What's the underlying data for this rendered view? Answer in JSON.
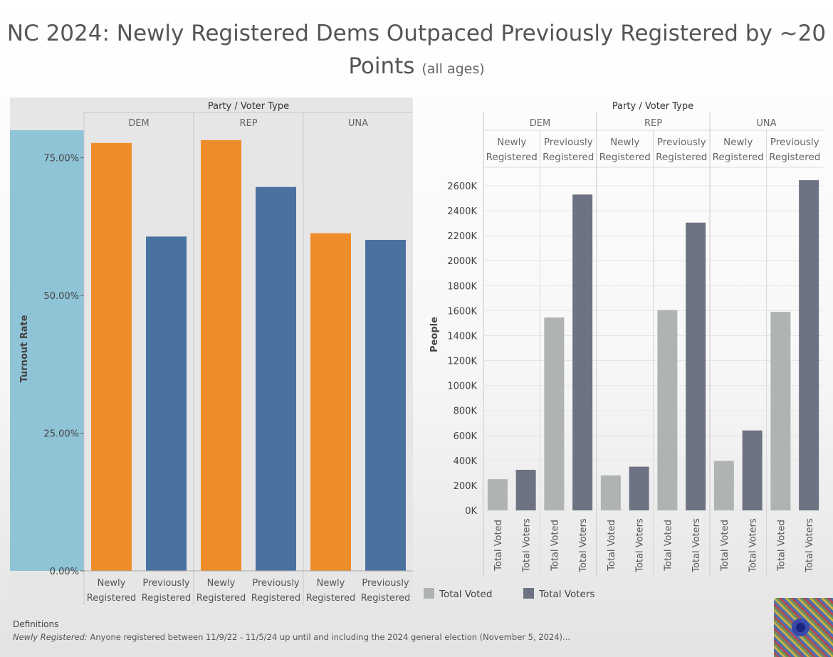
{
  "title": {
    "main_line1": "NC 2024: Newly Registered Dems Outpaced Previously Registered by ~20",
    "main_line2": "Points",
    "note": "(all ages)"
  },
  "colors": {
    "newly": "#ef8c2a",
    "previously": "#4a72a1",
    "voted": "#b0b3b4",
    "voters": "#6d7382",
    "left_bg": "#e6e6e6",
    "axis_band": "#8fc3d6"
  },
  "chart_data": [
    {
      "type": "bar",
      "header": "Party / Voter Type",
      "ylabel": "Turnout Rate",
      "ylim": [
        0,
        0.8
      ],
      "yticks": [
        "0.00%",
        "25.00%",
        "50.00%",
        "75.00%"
      ],
      "ytick_values": [
        0,
        0.25,
        0.5,
        0.75
      ],
      "groups": [
        "DEM",
        "REP",
        "UNA"
      ],
      "categories": [
        "Newly Registered",
        "Previously Registered"
      ],
      "category_lines": [
        [
          "Newly",
          "Registered"
        ],
        [
          "Previously",
          "Registered"
        ]
      ],
      "values": [
        [
          0.777,
          0.607
        ],
        [
          0.782,
          0.697
        ],
        [
          0.613,
          0.601
        ]
      ]
    },
    {
      "type": "bar",
      "header": "Party / Voter Type",
      "ylabel": "People",
      "ylim": [
        0,
        2700000
      ],
      "yticks": [
        "0K",
        "200K",
        "400K",
        "600K",
        "800K",
        "1000K",
        "1200K",
        "1400K",
        "1600K",
        "1800K",
        "2000K",
        "2200K",
        "2400K",
        "2600K"
      ],
      "ytick_values": [
        0,
        200000,
        400000,
        600000,
        800000,
        1000000,
        1200000,
        1400000,
        1600000,
        1800000,
        2000000,
        2200000,
        2400000,
        2600000
      ],
      "groups": [
        "DEM",
        "REP",
        "UNA"
      ],
      "subgroups": [
        "Newly Registered",
        "Previously Registered"
      ],
      "subgroup_lines": [
        [
          "Newly",
          "Registered"
        ],
        [
          "Previously",
          "Registered"
        ]
      ],
      "measures": [
        "Total Voted",
        "Total Voters"
      ],
      "legend": [
        "Total Voted",
        "Total Voters"
      ],
      "values": [
        [
          [
            250000,
            325000
          ],
          [
            1545000,
            2530000
          ]
        ],
        [
          [
            280000,
            350000
          ],
          [
            1605000,
            2305000
          ]
        ],
        [
          [
            395000,
            640000
          ],
          [
            1590000,
            2645000
          ]
        ]
      ]
    }
  ],
  "definitions": {
    "heading": "Definitions",
    "term": "Newly Registered:",
    "text": "Anyone registered between 11/9/22 - 11/5/24 up until and including the 2024 general election (November 5, 2024)..."
  }
}
